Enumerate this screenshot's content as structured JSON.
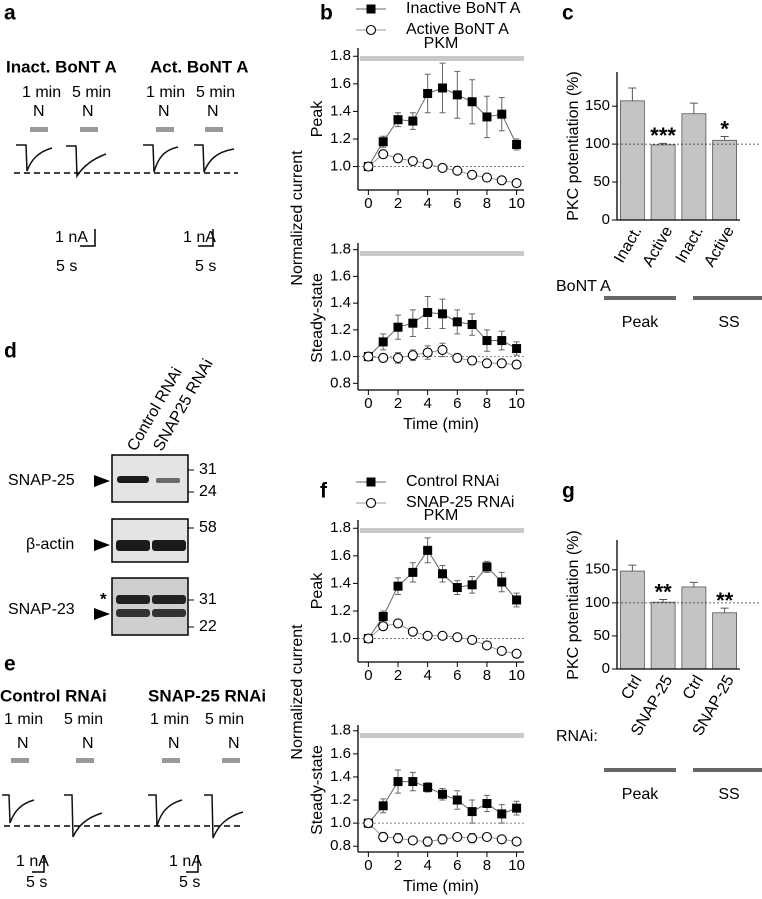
{
  "panels": {
    "a": {
      "letter": "a",
      "conditions": [
        "Inact. BoNT A",
        "Act. BoNT A"
      ],
      "times": [
        "1 min",
        "5 min",
        "1 min",
        "5 min"
      ],
      "stimulus": [
        "N",
        "N",
        "N",
        "N"
      ],
      "scale_current": [
        "1 nA",
        "1 nA"
      ],
      "scale_time": [
        "5 s",
        "5 s"
      ]
    },
    "d": {
      "letter": "d",
      "lanes": [
        "Control RNAi",
        "SNAP25 RNAi"
      ],
      "blots": [
        {
          "label": "SNAP-25",
          "markers": [
            "31",
            "24"
          ]
        },
        {
          "label": "β-actin",
          "markers": [
            "58"
          ]
        },
        {
          "label": "SNAP-23",
          "markers": [
            "31",
            "22"
          ],
          "asterisk": "*"
        }
      ]
    },
    "e": {
      "letter": "e",
      "conditions": [
        "Control RNAi",
        "SNAP-25 RNAi"
      ],
      "times": [
        "1 min",
        "5 min",
        "1 min",
        "5 min"
      ],
      "stimulus": [
        "N",
        "N",
        "N",
        "N"
      ],
      "scale_current": [
        "1 nA",
        "1 nA"
      ],
      "scale_time": [
        "5 s",
        "5 s"
      ]
    }
  },
  "chart_data": [
    {
      "type": "line",
      "panel": "b",
      "ylabel": "Normalized current",
      "subtitle": "Peak",
      "annotation": "PKM",
      "x": [
        0,
        1,
        2,
        3,
        4,
        5,
        6,
        7,
        8,
        9,
        10
      ],
      "xlim": [
        -0.7,
        10.5
      ],
      "xticks": [
        0,
        2,
        4,
        6,
        8,
        10
      ],
      "ylim": [
        0.83,
        1.86
      ],
      "yticks": [
        {
          "value": 1,
          "label": "1.0"
        },
        1.2,
        1.4,
        1.6,
        1.8
      ],
      "refline": 1,
      "series": [
        {
          "name": "Inactive BoNT A",
          "marker": "square",
          "color": "#000000",
          "values": [
            1.0,
            1.18,
            1.34,
            1.33,
            1.53,
            1.57,
            1.52,
            1.47,
            1.36,
            1.38,
            1.16
          ],
          "errors": [
            0.02,
            0.04,
            0.05,
            0.06,
            0.14,
            0.18,
            0.17,
            0.16,
            0.15,
            0.12,
            0.04
          ]
        },
        {
          "name": "Active BoNT A",
          "marker": "circle",
          "color": "#000000",
          "values": [
            1.0,
            1.09,
            1.06,
            1.04,
            1.02,
            0.99,
            0.97,
            0.94,
            0.92,
            0.9,
            0.88
          ],
          "errors": [
            0.02,
            0.02,
            0.02,
            0.02,
            0.02,
            0.02,
            0.02,
            0.02,
            0.02,
            0.02,
            0.02
          ]
        }
      ]
    },
    {
      "type": "line",
      "subtitle": "Steady-state",
      "xlabel": "Time (min)",
      "x": [
        0,
        1,
        2,
        3,
        4,
        5,
        6,
        7,
        8,
        9,
        10
      ],
      "xlim": [
        -0.7,
        10.5
      ],
      "xticks": [
        0,
        2,
        4,
        6,
        8,
        10
      ],
      "ylim": [
        0.75,
        1.85
      ],
      "yticks": [
        0.8,
        {
          "value": 1,
          "label": "1.0"
        },
        1.2,
        1.4,
        1.6,
        1.8
      ],
      "refline": 1,
      "series": [
        {
          "marker": "square",
          "color": "#000000",
          "values": [
            1.0,
            1.11,
            1.22,
            1.25,
            1.33,
            1.32,
            1.26,
            1.24,
            1.12,
            1.12,
            1.06
          ],
          "errors": [
            0.02,
            0.06,
            0.09,
            0.1,
            0.12,
            0.11,
            0.09,
            0.08,
            0.08,
            0.07,
            0.05
          ]
        },
        {
          "marker": "circle",
          "color": "#000000",
          "values": [
            1.0,
            0.99,
            0.99,
            1.01,
            1.03,
            1.05,
            0.99,
            0.97,
            0.95,
            0.95,
            0.94
          ],
          "errors": [
            0.02,
            0.03,
            0.04,
            0.04,
            0.05,
            0.05,
            0.03,
            0.03,
            0.03,
            0.03,
            0.03
          ]
        }
      ]
    },
    {
      "type": "bar",
      "panel": "c",
      "ylabel": "PKC potentiation (%)",
      "categories": [
        "Inact.",
        "Active",
        "Inact.",
        "Active"
      ],
      "values": [
        157,
        99,
        140,
        105
      ],
      "errors": [
        17,
        2,
        14,
        5
      ],
      "stars": [
        null,
        "***",
        null,
        "*"
      ],
      "color": "#c4c4c4",
      "ylim": [
        0,
        195
      ],
      "yticks": [
        0,
        50,
        100,
        150
      ],
      "refline": 100,
      "group_label": "BoNT A",
      "groups": [
        "Peak",
        "SS"
      ]
    },
    {
      "type": "line",
      "panel": "f",
      "ylabel": "Normalized current",
      "subtitle": "Peak",
      "annotation": "PKM",
      "x": [
        0,
        1,
        2,
        3,
        4,
        5,
        6,
        7,
        8,
        9,
        10
      ],
      "xlim": [
        -0.7,
        10.5
      ],
      "xticks": [
        0,
        2,
        4,
        6,
        8,
        10
      ],
      "ylim": [
        0.83,
        1.86
      ],
      "yticks": [
        {
          "value": 1,
          "label": "1.0"
        },
        1.2,
        1.4,
        1.6,
        1.8
      ],
      "refline": 1,
      "series": [
        {
          "name": "Control RNAi",
          "marker": "square",
          "color": "#000000",
          "values": [
            1.0,
            1.16,
            1.38,
            1.48,
            1.64,
            1.47,
            1.37,
            1.39,
            1.52,
            1.41,
            1.28
          ],
          "errors": [
            0.02,
            0.04,
            0.06,
            0.07,
            0.09,
            0.06,
            0.05,
            0.06,
            0.04,
            0.07,
            0.05
          ]
        },
        {
          "name": "SNAP-25 RNAi",
          "marker": "circle",
          "color": "#000000",
          "values": [
            1.0,
            1.09,
            1.11,
            1.05,
            1.02,
            1.02,
            1.01,
            0.99,
            0.95,
            0.91,
            0.89
          ],
          "errors": [
            0.02,
            0.02,
            0.02,
            0.02,
            0.02,
            0.02,
            0.02,
            0.02,
            0.02,
            0.02,
            0.02
          ]
        }
      ]
    },
    {
      "type": "line",
      "subtitle": "Steady-state",
      "xlabel": "Time (min)",
      "x": [
        0,
        1,
        2,
        3,
        4,
        5,
        6,
        7,
        8,
        9,
        10
      ],
      "xlim": [
        -0.7,
        10.5
      ],
      "xticks": [
        0,
        2,
        4,
        6,
        8,
        10
      ],
      "ylim": [
        0.75,
        1.85
      ],
      "yticks": [
        0.8,
        {
          "value": 1,
          "label": "1.0"
        },
        1.2,
        1.4,
        1.6,
        1.8
      ],
      "refline": 1,
      "series": [
        {
          "marker": "square",
          "color": "#000000",
          "values": [
            1.0,
            1.15,
            1.36,
            1.36,
            1.31,
            1.25,
            1.2,
            1.1,
            1.17,
            1.08,
            1.13
          ],
          "errors": [
            0.02,
            0.06,
            0.1,
            0.08,
            0.04,
            0.05,
            0.08,
            0.1,
            0.07,
            0.08,
            0.06
          ]
        },
        {
          "marker": "circle",
          "color": "#000000",
          "values": [
            1.0,
            0.88,
            0.87,
            0.85,
            0.84,
            0.86,
            0.88,
            0.87,
            0.88,
            0.86,
            0.84
          ],
          "errors": [
            0.02,
            0.04,
            0.04,
            0.03,
            0.04,
            0.04,
            0.03,
            0.04,
            0.03,
            0.03,
            0.02
          ]
        }
      ]
    },
    {
      "type": "bar",
      "panel": "g",
      "ylabel": "PKC potentiation (%)",
      "categories": [
        "Ctrl",
        "SNAP-25",
        "Ctrl",
        "SNAP-25"
      ],
      "values": [
        148,
        101,
        124,
        85
      ],
      "errors": [
        9,
        4,
        7,
        7
      ],
      "stars": [
        null,
        "**",
        null,
        "**"
      ],
      "color": "#c4c4c4",
      "ylim": [
        0,
        195
      ],
      "yticks": [
        0,
        50,
        100,
        150
      ],
      "refline": 100,
      "group_label": "RNAi:",
      "groups": [
        "Peak",
        "SS"
      ]
    }
  ]
}
